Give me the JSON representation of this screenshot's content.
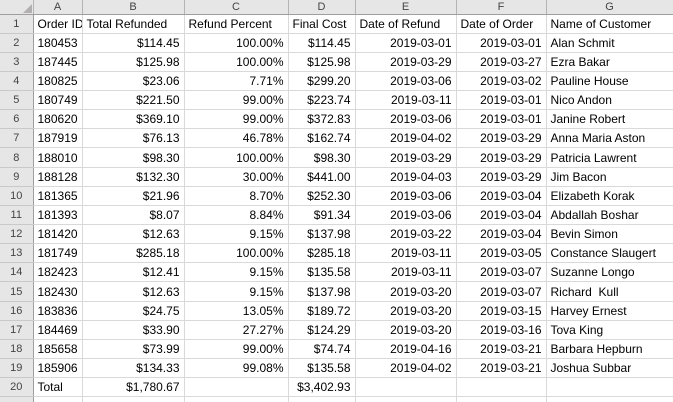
{
  "colors": {
    "header_bg": "#e6e6e6",
    "header_text": "#444444",
    "header_border": "#9e9e9e",
    "header_sep": "#b4b4b4",
    "grid_line": "#d9d9d9",
    "cell_text": "#000000",
    "triangle": "#b1afaf"
  },
  "spreadsheet": {
    "column_letters": [
      "A",
      "B",
      "C",
      "D",
      "E",
      "F",
      "G"
    ],
    "field_headers": [
      "Order ID",
      "Total Refunded",
      "Refund Percent",
      "Final Cost",
      "Date of Refund",
      "Date of Order",
      "Name of Customer"
    ],
    "rows": [
      {
        "n": "1",
        "cells": [
          "Order ID",
          "Total Refunded",
          "Refund Percent",
          "Final Cost",
          "Date of Refund",
          "Date of Order",
          "Name of Customer"
        ]
      },
      {
        "n": "2",
        "cells": [
          "180453",
          "$114.45",
          "100.00%",
          "$114.45",
          "2019-03-01",
          "2019-03-01",
          "Alan Schmit"
        ]
      },
      {
        "n": "3",
        "cells": [
          "187445",
          "$125.98",
          "100.00%",
          "$125.98",
          "2019-03-29",
          "2019-03-27",
          "Ezra Bakar"
        ]
      },
      {
        "n": "4",
        "cells": [
          "180825",
          "$23.06",
          "7.71%",
          "$299.20",
          "2019-03-06",
          "2019-03-02",
          "Pauline House"
        ]
      },
      {
        "n": "5",
        "cells": [
          "180749",
          "$221.50",
          "99.00%",
          "$223.74",
          "2019-03-11",
          "2019-03-01",
          "Nico Andon"
        ]
      },
      {
        "n": "6",
        "cells": [
          "180620",
          "$369.10",
          "99.00%",
          "$372.83",
          "2019-03-06",
          "2019-03-01",
          "Janine Robert"
        ]
      },
      {
        "n": "7",
        "cells": [
          "187919",
          "$76.13",
          "46.78%",
          "$162.74",
          "2019-04-02",
          "2019-03-29",
          "Anna Maria Aston"
        ]
      },
      {
        "n": "8",
        "cells": [
          "188010",
          "$98.30",
          "100.00%",
          "$98.30",
          "2019-03-29",
          "2019-03-29",
          "Patricia Lawrent"
        ]
      },
      {
        "n": "9",
        "cells": [
          "188128",
          "$132.30",
          "30.00%",
          "$441.00",
          "2019-04-03",
          "2019-03-29",
          "Jim Bacon"
        ]
      },
      {
        "n": "10",
        "cells": [
          "181365",
          "$21.96",
          "8.70%",
          "$252.30",
          "2019-03-06",
          "2019-03-04",
          "Elizabeth Korak"
        ]
      },
      {
        "n": "11",
        "cells": [
          "181393",
          "$8.07",
          "8.84%",
          "$91.34",
          "2019-03-06",
          "2019-03-04",
          "Abdallah Boshar"
        ]
      },
      {
        "n": "12",
        "cells": [
          "181420",
          "$12.63",
          "9.15%",
          "$137.98",
          "2019-03-22",
          "2019-03-04",
          "Bevin Simon"
        ]
      },
      {
        "n": "13",
        "cells": [
          "181749",
          "$285.18",
          "100.00%",
          "$285.18",
          "2019-03-11",
          "2019-03-05",
          "Constance Slaugert"
        ]
      },
      {
        "n": "14",
        "cells": [
          "182423",
          "$12.41",
          "9.15%",
          "$135.58",
          "2019-03-11",
          "2019-03-07",
          "Suzanne Longo"
        ]
      },
      {
        "n": "15",
        "cells": [
          "182430",
          "$12.63",
          "9.15%",
          "$137.98",
          "2019-03-20",
          "2019-03-07",
          "Richard  Kull"
        ]
      },
      {
        "n": "16",
        "cells": [
          "183836",
          "$24.75",
          "13.05%",
          "$189.72",
          "2019-03-20",
          "2019-03-15",
          "Harvey Ernest"
        ]
      },
      {
        "n": "17",
        "cells": [
          "184469",
          "$33.90",
          "27.27%",
          "$124.29",
          "2019-03-20",
          "2019-03-16",
          "Tova King"
        ]
      },
      {
        "n": "18",
        "cells": [
          "185658",
          "$73.99",
          "99.00%",
          "$74.74",
          "2019-04-16",
          "2019-03-21",
          "Barbara Hepburn"
        ]
      },
      {
        "n": "19",
        "cells": [
          "185906",
          "$134.33",
          "99.08%",
          "$135.58",
          "2019-04-02",
          "2019-03-21",
          "Joshua Subbar"
        ]
      },
      {
        "n": "20",
        "cells": [
          "Total",
          "$1,780.67",
          "",
          "$3,402.93",
          "",
          "",
          ""
        ]
      }
    ],
    "totals": {
      "label": "Total",
      "total_refunded": "$1,780.67",
      "final_cost": "$3,402.93"
    }
  }
}
